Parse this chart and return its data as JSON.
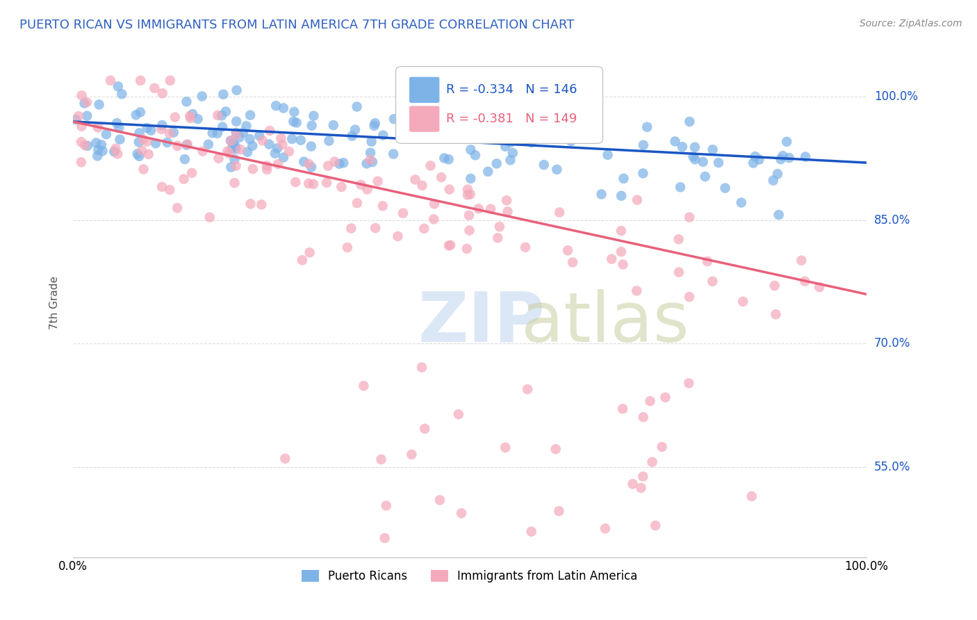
{
  "title": "PUERTO RICAN VS IMMIGRANTS FROM LATIN AMERICA 7TH GRADE CORRELATION CHART",
  "source_text": "Source: ZipAtlas.com",
  "ylabel": "7th Grade",
  "xmin": 0.0,
  "xmax": 1.0,
  "ymin": 0.44,
  "ymax": 1.06,
  "ytick_labels": [
    "55.0%",
    "70.0%",
    "85.0%",
    "100.0%"
  ],
  "ytick_values": [
    0.55,
    0.7,
    0.85,
    1.0
  ],
  "xtick_labels": [
    "0.0%",
    "100.0%"
  ],
  "xtick_values": [
    0.0,
    1.0
  ],
  "blue_R": -0.334,
  "blue_N": 146,
  "pink_R": -0.381,
  "pink_N": 149,
  "blue_color": "#7EB3E8",
  "pink_color": "#F4AABB",
  "blue_line_color": "#1A56C4",
  "pink_line_color": "#E8607A",
  "legend_blue_label": "Puerto Ricans",
  "legend_pink_label": "Immigrants from Latin America",
  "title_color": "#3060C0",
  "source_color": "#888888",
  "background_color": "#FFFFFF",
  "grid_color": "#DDDDDD",
  "blue_line_start_y": 0.97,
  "blue_line_end_y": 0.92,
  "pink_line_start_y": 0.97,
  "pink_line_end_y": 0.76
}
